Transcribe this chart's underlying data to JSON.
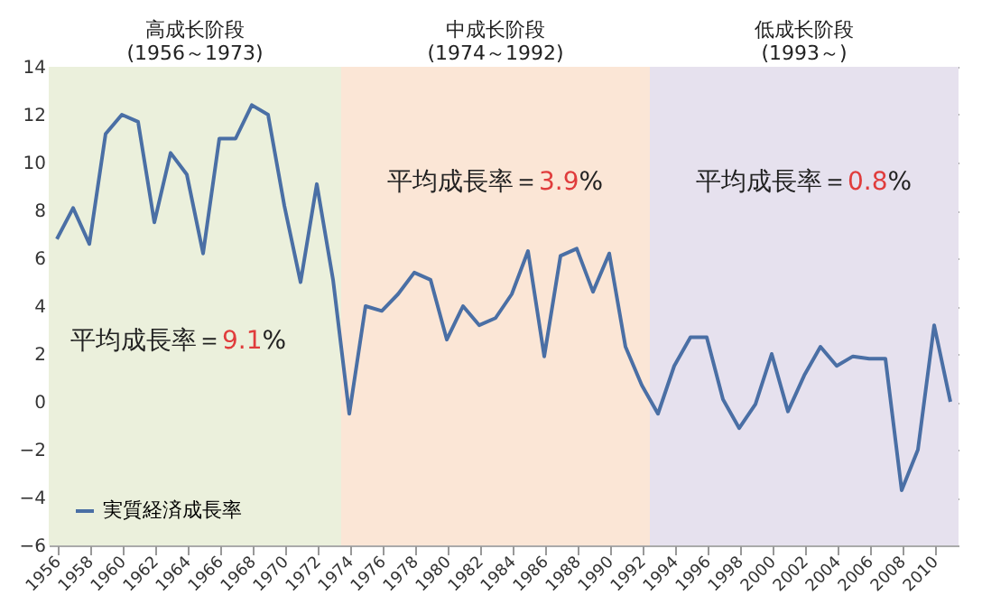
{
  "chart_data": {
    "type": "line",
    "x": [
      1956,
      1957,
      1958,
      1959,
      1960,
      1961,
      1962,
      1963,
      1964,
      1965,
      1966,
      1967,
      1968,
      1969,
      1970,
      1971,
      1972,
      1973,
      1974,
      1975,
      1976,
      1977,
      1978,
      1979,
      1980,
      1981,
      1982,
      1983,
      1984,
      1985,
      1986,
      1987,
      1988,
      1989,
      1990,
      1991,
      1992,
      1993,
      1994,
      1995,
      1996,
      1997,
      1998,
      1999,
      2000,
      2001,
      2002,
      2003,
      2004,
      2005,
      2006,
      2007,
      2008,
      2009,
      2010,
      2011
    ],
    "series": [
      {
        "name": "実質経済成長率",
        "color": "#4a6fa5",
        "values": [
          6.8,
          8.1,
          6.6,
          11.2,
          12.0,
          11.7,
          7.5,
          10.4,
          9.5,
          6.2,
          11.0,
          11.0,
          12.4,
          12.0,
          8.2,
          5.0,
          9.1,
          5.1,
          -0.5,
          4.0,
          3.8,
          4.5,
          5.4,
          5.1,
          2.6,
          4.0,
          3.2,
          3.5,
          4.5,
          6.3,
          1.9,
          6.1,
          6.4,
          4.6,
          6.2,
          2.3,
          0.7,
          -0.5,
          1.5,
          2.7,
          2.7,
          0.1,
          -1.1,
          -0.1,
          2.0,
          -0.4,
          1.1,
          2.3,
          1.5,
          1.9,
          1.8,
          1.8,
          -3.7,
          -2.0,
          3.2,
          0.0
        ]
      }
    ],
    "xlim": [
      1955.5,
      2011.5
    ],
    "xticks": [
      1956,
      1958,
      1960,
      1962,
      1964,
      1966,
      1968,
      1970,
      1972,
      1974,
      1976,
      1978,
      1980,
      1982,
      1984,
      1986,
      1988,
      1990,
      1992,
      1994,
      1996,
      1998,
      2000,
      2002,
      2004,
      2006,
      2008,
      2010
    ],
    "ylim": [
      -6,
      14
    ],
    "yticks": [
      -6,
      -4,
      -2,
      0,
      2,
      4,
      6,
      8,
      10,
      12,
      14
    ],
    "bands": [
      {
        "axis": "x",
        "from": 1955.5,
        "to": 1973.5,
        "label": "高成长阶段\n(1956～1973)",
        "color": "#ebf0dc"
      },
      {
        "axis": "x",
        "from": 1973.5,
        "to": 1992.5,
        "label": "中成长阶段\n(1974～1992)",
        "color": "#fbe6d6"
      },
      {
        "axis": "x",
        "from": 1992.5,
        "to": 2011.5,
        "label": "低成长阶段\n(1993～)",
        "color": "#e6e1ee"
      }
    ],
    "annotations": [
      "平均成長率＝9.1%",
      "平均成長率＝3.9%",
      "平均成長率＝0.8%"
    ],
    "grid": "y",
    "legend": "bottom left",
    "marker": "none",
    "line_style": "solid"
  }
}
